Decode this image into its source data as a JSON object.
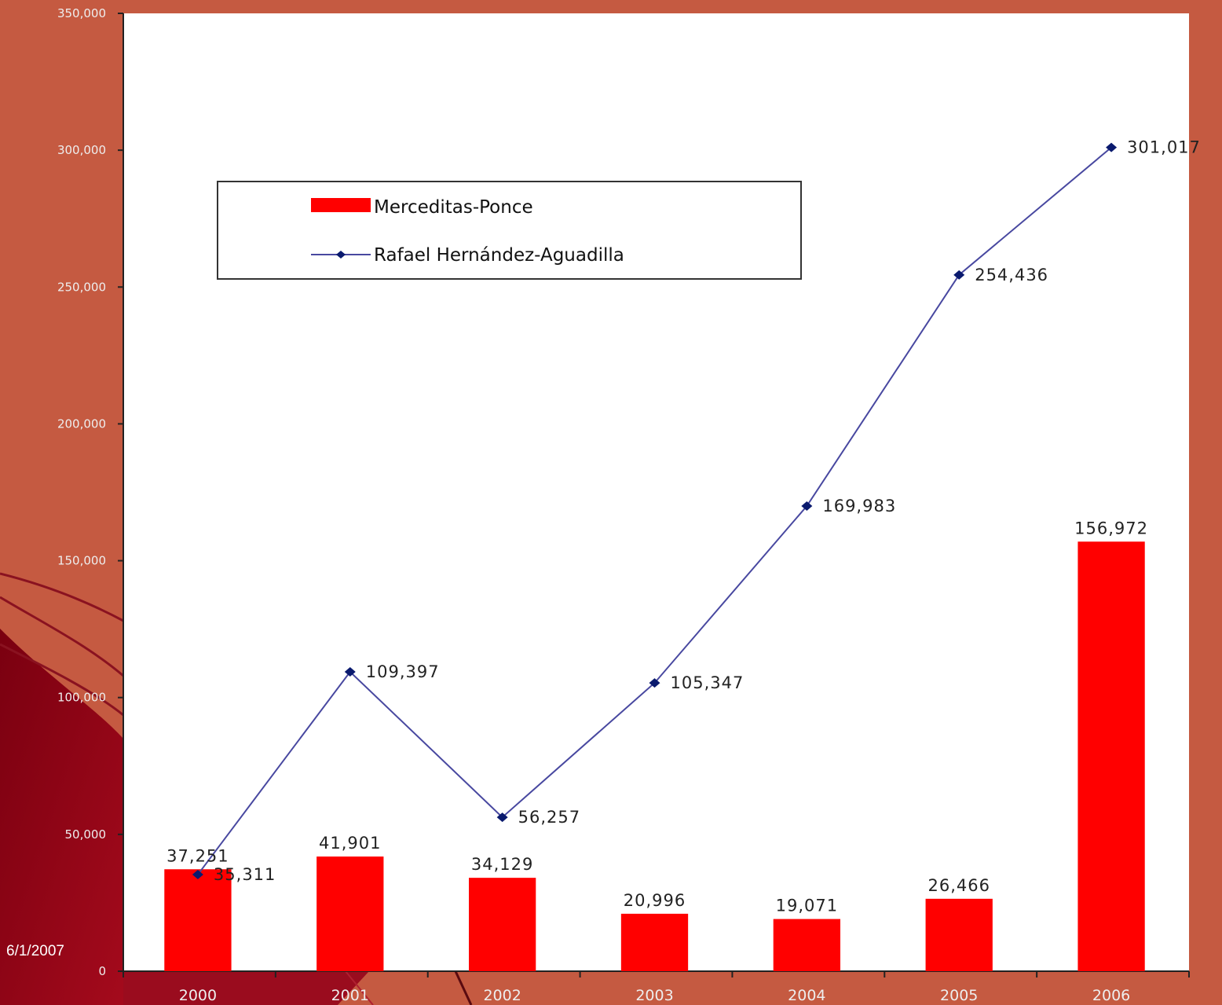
{
  "slide": {
    "date": "6/1/2007",
    "background_color": "#c55a41"
  },
  "chart_data": {
    "type": "bar",
    "categories": [
      "2000",
      "2001",
      "2002",
      "2003",
      "2004",
      "2005",
      "2006"
    ],
    "series": [
      {
        "name": "Merceditas-Ponce",
        "type": "bar",
        "color": "#ff0000",
        "values": [
          37251,
          41901,
          34129,
          20996,
          19071,
          26466,
          156972
        ],
        "labels": [
          "37,251",
          "41,901",
          "34,129",
          "20,996",
          "19,071",
          "26,466",
          "156,972"
        ]
      },
      {
        "name": "Rafael Hernández-Aguadilla",
        "type": "line",
        "color": "#4848a0",
        "marker_color": "#0a1a6e",
        "marker": "diamond",
        "values": [
          35311,
          109397,
          56257,
          105347,
          169983,
          254436,
          301017
        ],
        "labels": [
          "35,311",
          "109,397",
          "56,257",
          "105,347",
          "169,983",
          "254,436",
          "301,017"
        ]
      }
    ],
    "ylim": [
      0,
      350000
    ],
    "yticks": [
      0,
      50000,
      100000,
      150000,
      200000,
      250000,
      300000,
      350000
    ],
    "ytick_labels": [
      "0",
      "50,000",
      "100,000",
      "150,000",
      "200,000",
      "250,000",
      "300,000",
      "350,000"
    ],
    "grid": false,
    "legend_position": "top-left"
  }
}
